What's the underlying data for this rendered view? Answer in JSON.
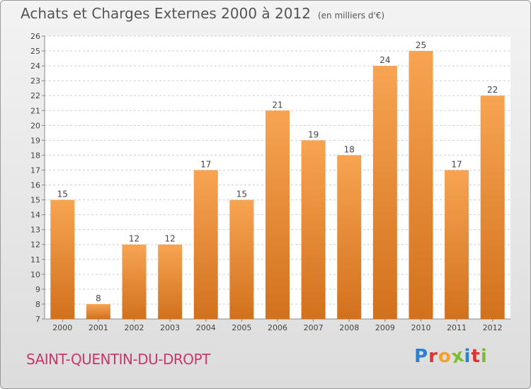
{
  "chart_data": {
    "type": "bar",
    "title": "Achats et Charges Externes 2000 à 2012",
    "unit_label": "(en milliers d'€)",
    "categories": [
      "2000",
      "2001",
      "2002",
      "2003",
      "2004",
      "2005",
      "2006",
      "2007",
      "2008",
      "2009",
      "2010",
      "2011",
      "2012"
    ],
    "values": [
      15,
      8,
      12,
      12,
      17,
      15,
      21,
      19,
      18,
      24,
      25,
      17,
      22
    ],
    "ylim": [
      7,
      26
    ],
    "yticks": [
      7,
      8,
      9,
      10,
      11,
      12,
      13,
      14,
      15,
      16,
      17,
      18,
      19,
      20,
      21,
      22,
      23,
      24,
      25,
      26
    ],
    "grid": true,
    "bar_color_top": "#f7a452",
    "bar_color_bottom": "#d2711d"
  },
  "footer": {
    "city": "SAINT-QUENTIN-DU-DROPT",
    "logo_letters": [
      "P",
      "r",
      "o",
      "x",
      "i",
      "t",
      "i"
    ],
    "logo_colors": [
      "#2f7fcf",
      "#e0322f",
      "#f2a12a",
      "#7bbd2f",
      "#2f7fcf",
      "#e0322f",
      "#7bbd2f"
    ]
  }
}
